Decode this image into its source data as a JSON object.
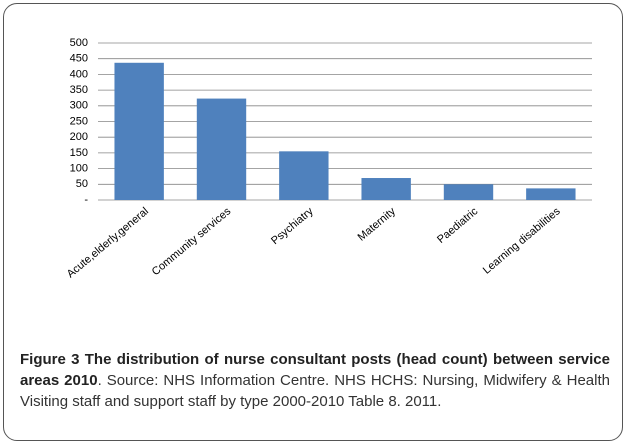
{
  "chart_data": {
    "type": "bar",
    "categories": [
      "Acute,elderly,general",
      "Community services",
      "Psychiatry",
      "Maternity",
      "Paediatric",
      "Learning disabilities"
    ],
    "values": [
      437,
      323,
      155,
      70,
      50,
      37
    ],
    "color": "#4f81bd",
    "ylim": [
      0,
      500
    ],
    "yticks": [
      {
        "value": 0,
        "label": "-"
      },
      50,
      100,
      150,
      200,
      250,
      300,
      350,
      400,
      450,
      500
    ],
    "grid": true
  },
  "caption": {
    "title": "Figure 3 The distribution of nurse consultant posts (head count) between service areas 2010",
    "text": ". Source: NHS Information Centre. NHS HCHS: Nursing, Midwifery & Health Visiting staff and support staff by type 2000-2010 Table 8. 2011."
  }
}
